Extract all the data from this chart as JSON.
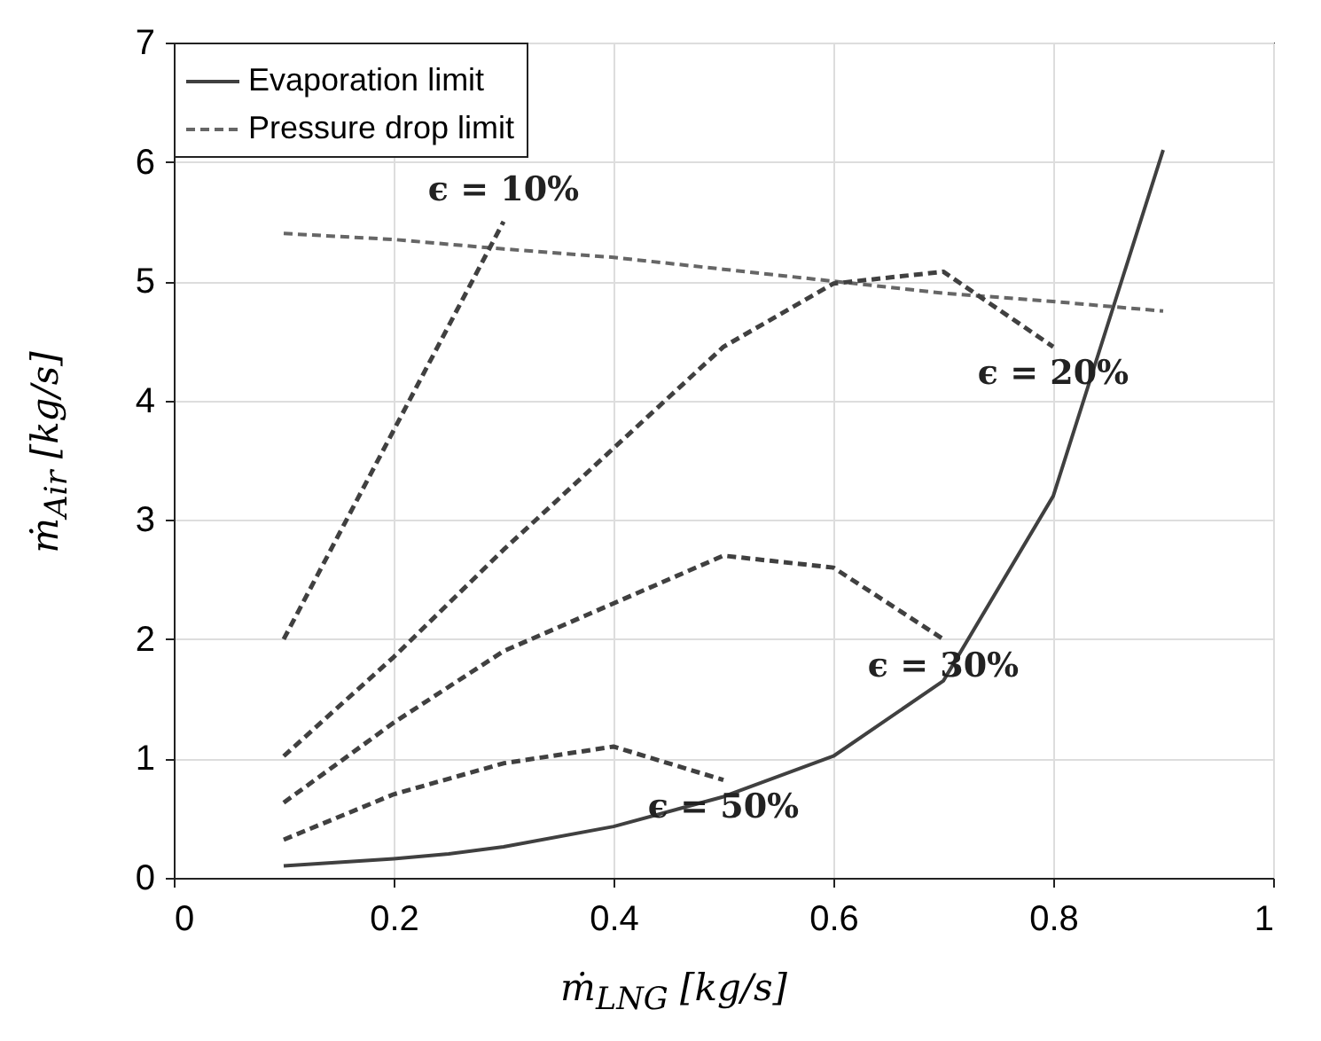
{
  "chart_data": {
    "type": "line",
    "xlabel": "ṁ$_{LNG}$ [kg/s]",
    "ylabel": "ṁ$_{Air}$ [kg/s]",
    "xlim": [
      0,
      1
    ],
    "xticks": [
      0,
      0.2,
      0.4,
      0.6,
      0.8,
      1
    ],
    "ylim": [
      0,
      7
    ],
    "yticks": [
      0,
      1,
      2,
      3,
      4,
      5,
      6,
      7
    ],
    "grid": true,
    "legend": "top left",
    "series": [
      {
        "name": "Evaporation limit",
        "color": "#404040",
        "line_style": "solid",
        "x": [
          0.1,
          0.2,
          0.25,
          0.3,
          0.4,
          0.5,
          0.6,
          0.7,
          0.8,
          0.9
        ],
        "values": [
          0.1,
          0.16,
          0.2,
          0.26,
          0.43,
          0.68,
          1.02,
          1.65,
          3.2,
          6.1
        ]
      },
      {
        "name": "Pressure drop limit",
        "color": "#666666",
        "line_style": "dashed",
        "x": [
          0.1,
          0.2,
          0.3,
          0.4,
          0.5,
          0.6,
          0.7,
          0.8,
          0.9
        ],
        "values": [
          5.4,
          5.35,
          5.27,
          5.2,
          5.1,
          5.0,
          4.9,
          4.83,
          4.75
        ]
      },
      {
        "color": "#404040",
        "line_style": "dashed",
        "x": [
          0.1,
          0.3
        ],
        "values": [
          2.0,
          5.5
        ]
      },
      {
        "color": "#404040",
        "line_style": "dashed",
        "x": [
          0.1,
          0.2,
          0.3,
          0.4,
          0.5,
          0.6,
          0.7,
          0.8
        ],
        "values": [
          1.02,
          1.85,
          2.75,
          3.6,
          4.45,
          4.98,
          5.08,
          4.45
        ]
      },
      {
        "color": "#404040",
        "line_style": "dashed",
        "x": [
          0.1,
          0.2,
          0.3,
          0.4,
          0.5,
          0.6,
          0.7
        ],
        "values": [
          0.63,
          1.3,
          1.9,
          2.3,
          2.7,
          2.6,
          2.0
        ]
      },
      {
        "color": "#404040",
        "line_style": "dashed",
        "x": [
          0.1,
          0.2,
          0.3,
          0.4,
          0.5
        ],
        "values": [
          0.32,
          0.7,
          0.96,
          1.1,
          0.82
        ]
      }
    ],
    "annotations": [
      {
        "text": "ϵ = 10%",
        "x": 0.3,
        "y": 5.5
      },
      {
        "text": "ϵ = 20%",
        "x": 0.8,
        "y": 4.45
      },
      {
        "text": "ϵ = 30%",
        "x": 0.7,
        "y": 2.0
      },
      {
        "text": "ϵ = 50%",
        "x": 0.5,
        "y": 0.82
      }
    ]
  }
}
